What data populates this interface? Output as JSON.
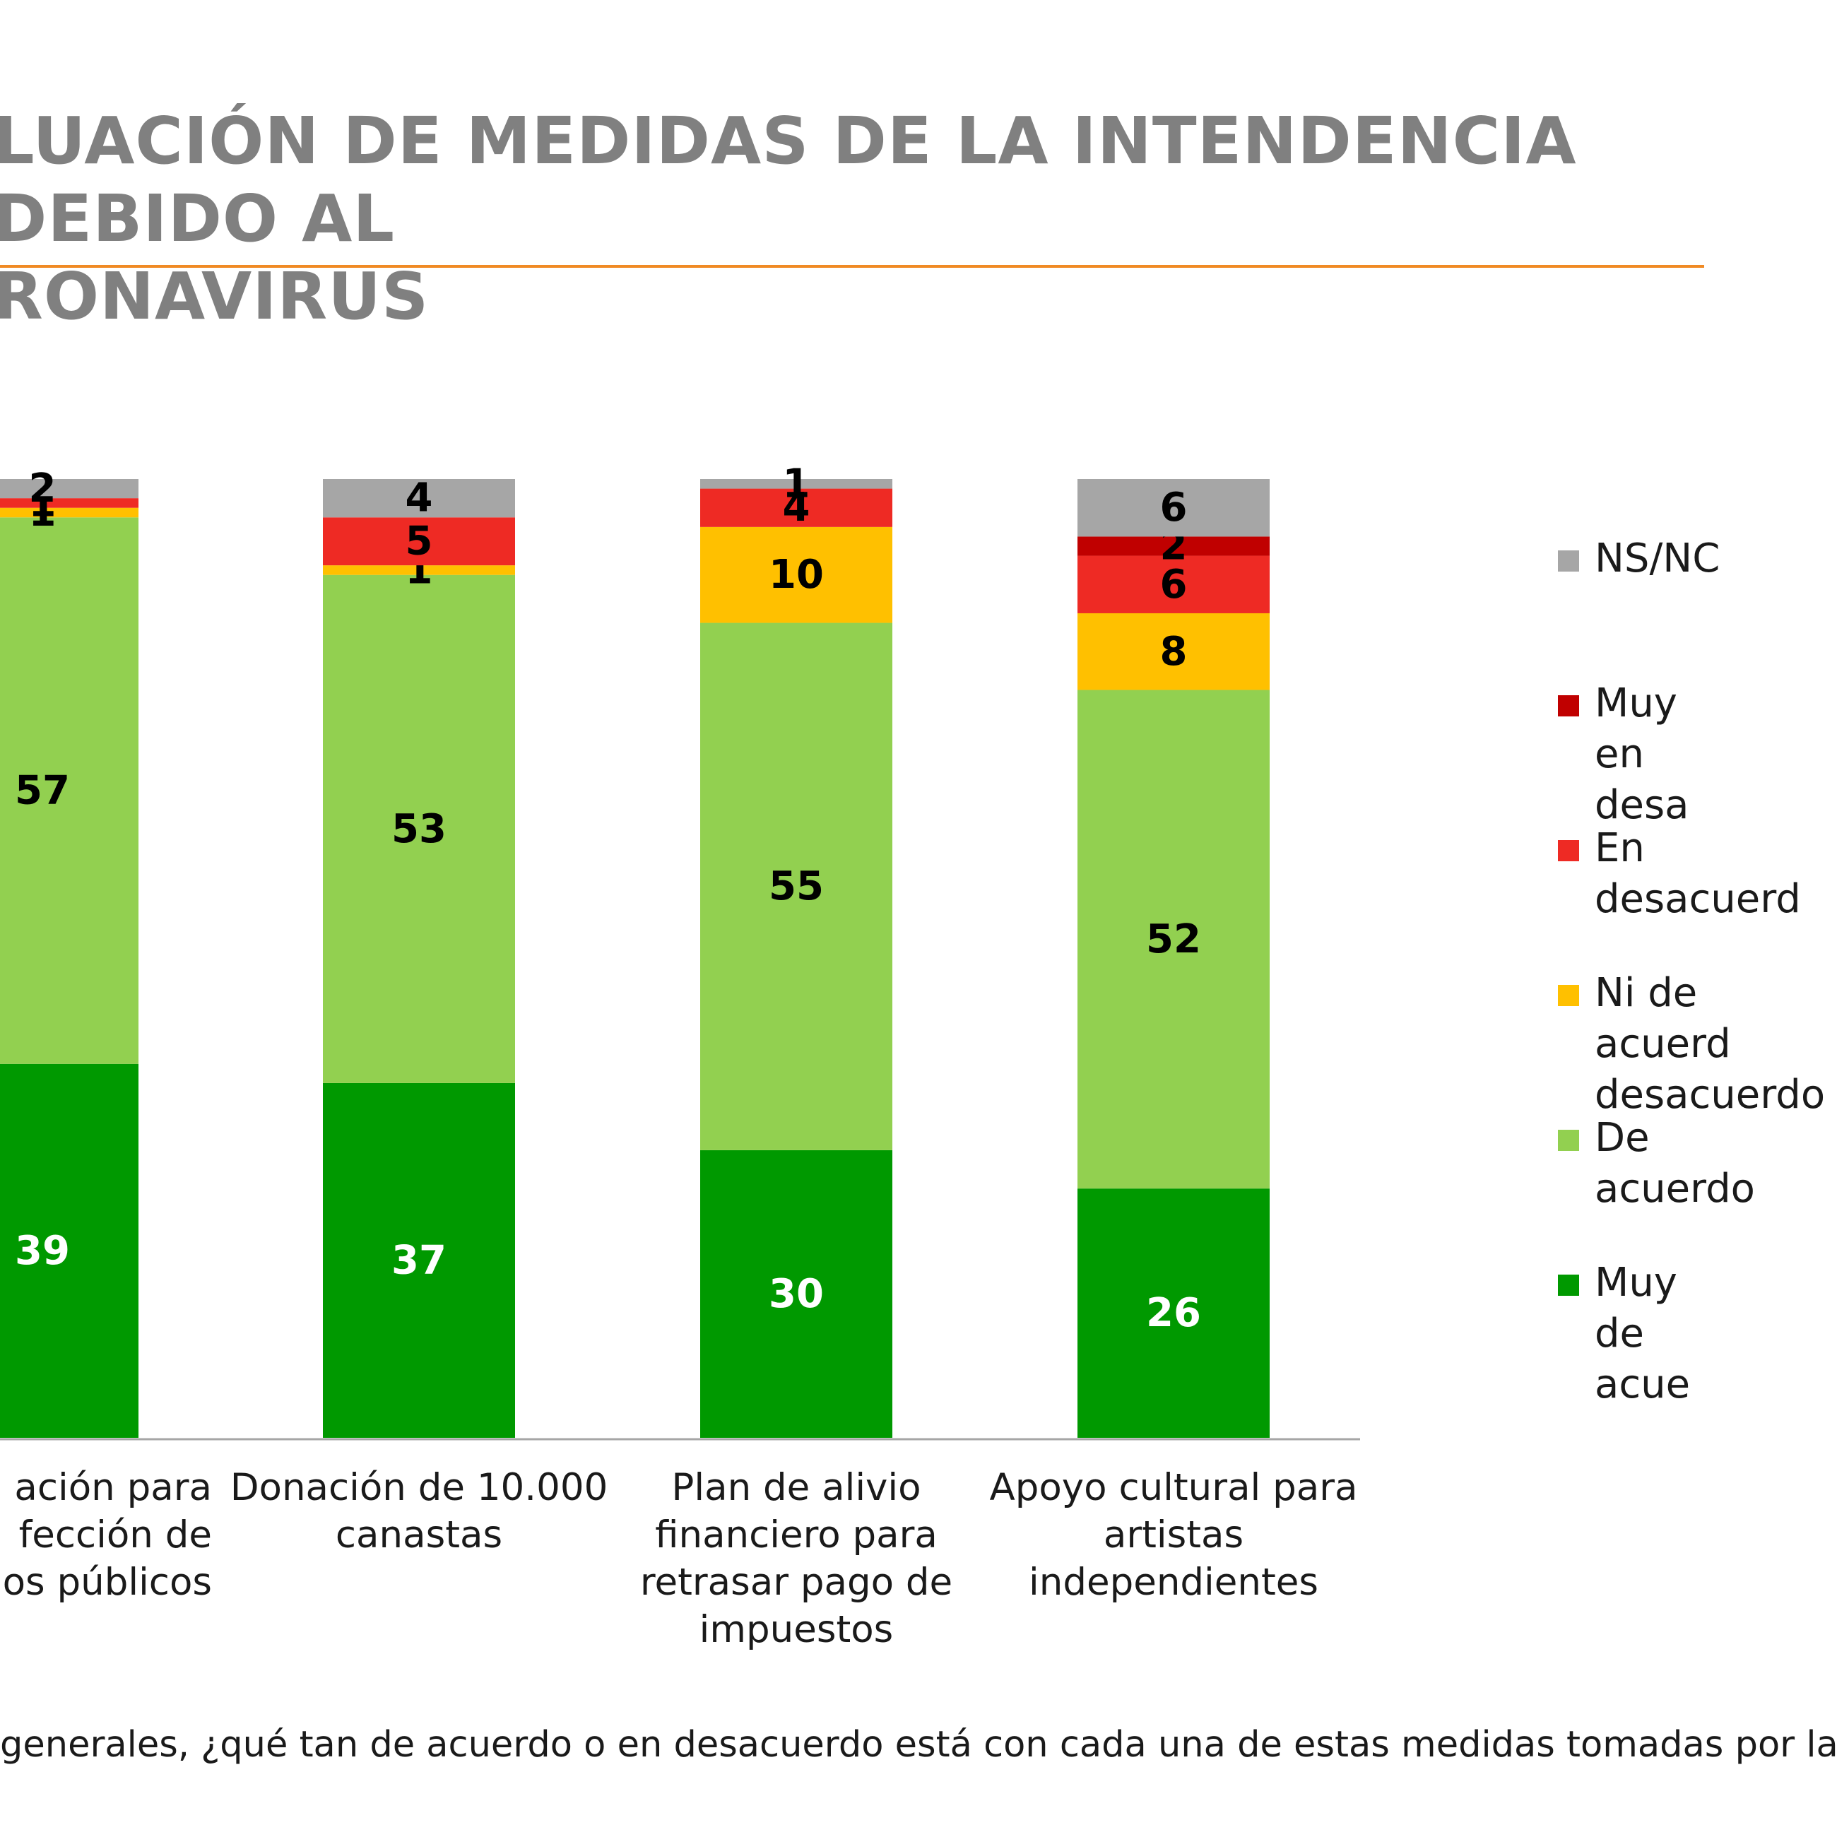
{
  "title": "LUACIÓN DE MEDIDAS DE LA INTENDENCIA DEBIDO AL\nRONAVIRUS",
  "footnote": "generales, ¿qué tan de acuerdo o en desacuerdo está con cada una de estas medidas tomadas por la",
  "colors": {
    "title": "#808080",
    "accent_rule": "#f08a24"
  },
  "chart_data": {
    "type": "bar",
    "stacked": true,
    "categories": [
      "ación para\nfección de\nos públicos",
      "Donación de 10.000\ncanastas",
      "Plan de alivio\nfinanciero para\nretrasar pago de\nimpuestos",
      "Apoyo cultural para\nartistas\nindependientes"
    ],
    "series": [
      {
        "name": "Muy de acue",
        "color": "#009900",
        "label_color": "#ffffff",
        "values": [
          39,
          37,
          30,
          26
        ]
      },
      {
        "name": "De acuerdo",
        "color": "#92d050",
        "label_color": "#000000",
        "values": [
          57,
          53,
          55,
          52
        ]
      },
      {
        "name": "Ni de acuerd\ndesacuerdo",
        "color": "#ffc000",
        "label_color": "#000000",
        "values": [
          1,
          1,
          10,
          8
        ]
      },
      {
        "name": "En desacuerd",
        "color": "#ee2a24",
        "label_color": "#000000",
        "values": [
          1,
          5,
          4,
          6
        ]
      },
      {
        "name": "Muy en desa",
        "color": "#c00000",
        "label_color": "#000000",
        "values": [
          0,
          0,
          0,
          2
        ]
      },
      {
        "name": "NS/NC",
        "color": "#a6a6a6",
        "label_color": "#000000",
        "values": [
          2,
          4,
          1,
          6
        ]
      }
    ],
    "legend_order": [
      "NS/NC",
      "Muy en desa",
      "En desacuerd",
      "Ni de acuerd\ndesacuerdo",
      "De acuerdo",
      "Muy de acue"
    ],
    "ylim": [
      0,
      100
    ],
    "legend_position": "right",
    "grid": false
  }
}
